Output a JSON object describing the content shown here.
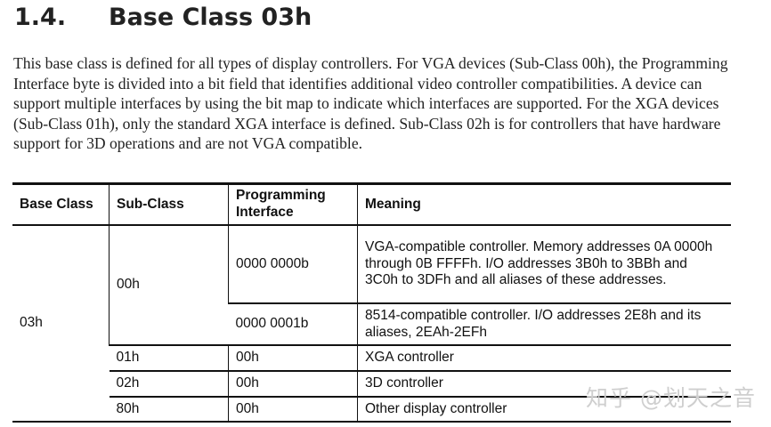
{
  "heading": {
    "number": "1.4.",
    "title": "Base Class 03h"
  },
  "paragraph": "This base class is defined for all types of display controllers.  For VGA devices (Sub-Class 00h), the Programming Interface byte is divided into a bit field that identifies additional video controller compatibilities.  A device can support multiple interfaces by using the bit map to indicate which interfaces are supported.  For the XGA devices (Sub-Class 01h), only the standard XGA interface is defined.  Sub-Class 02h is for controllers that have hardware support for 3D operations and are not VGA compatible.",
  "table": {
    "headers": [
      "Base Class",
      "Sub-Class",
      "Programming Interface",
      "Meaning"
    ],
    "base_class": "03h",
    "rows": [
      {
        "sub": "00h",
        "pi": "0000 0000b",
        "meaning": "VGA-compatible controller.  Memory addresses 0A 0000h through 0B FFFFh.  I/O addresses 3B0h to 3BBh and 3C0h to 3DFh and all aliases of these addresses."
      },
      {
        "sub": "",
        "pi": "0000 0001b",
        "meaning": "8514-compatible controller. I/O addresses 2E8h and its aliases, 2EAh-2EFh"
      },
      {
        "sub": "01h",
        "pi": "00h",
        "meaning": "XGA controller"
      },
      {
        "sub": "02h",
        "pi": "00h",
        "meaning": "3D controller"
      },
      {
        "sub": "80h",
        "pi": "00h",
        "meaning": "Other display controller"
      }
    ]
  },
  "watermark": "知乎 @划天之音"
}
